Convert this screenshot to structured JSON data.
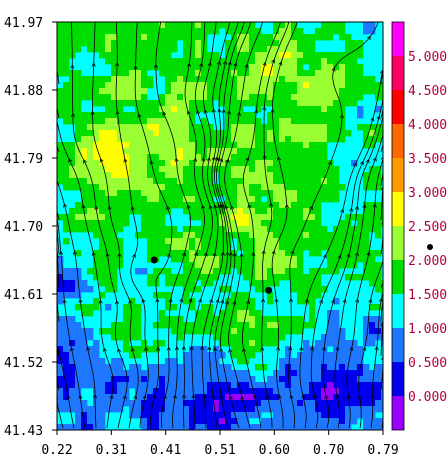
{
  "chart_data": {
    "type": "heatmap",
    "title": "",
    "xlabel": "",
    "ylabel": "",
    "x_ticks": [
      "0.22",
      "0.31",
      "0.41",
      "0.51",
      "0.60",
      "0.70",
      "0.79"
    ],
    "y_ticks": [
      "41.97",
      "41.88",
      "41.79",
      "41.70",
      "41.61",
      "41.52",
      "41.43"
    ],
    "xlim": [
      0.22,
      0.79
    ],
    "ylim": [
      41.43,
      41.97
    ],
    "overlay": "streamlines",
    "colorbar": {
      "levels": [
        "0.000",
        "0.500",
        "1.000",
        "1.500",
        "2.000",
        "2.500",
        "3.000",
        "3.500",
        "4.000",
        "4.500",
        "5.000"
      ],
      "colors": [
        "#9900ff",
        "#0000ee",
        "#1e78ff",
        "#00ffff",
        "#00dd00",
        "#99ff33",
        "#ffff00",
        "#ff9900",
        "#ff6600",
        "#ff0000",
        "#ff0066",
        "#ff00ff"
      ]
    },
    "markers": [
      {
        "x": 0.39,
        "y": 41.655
      },
      {
        "x": 0.59,
        "y": 41.615
      }
    ]
  }
}
